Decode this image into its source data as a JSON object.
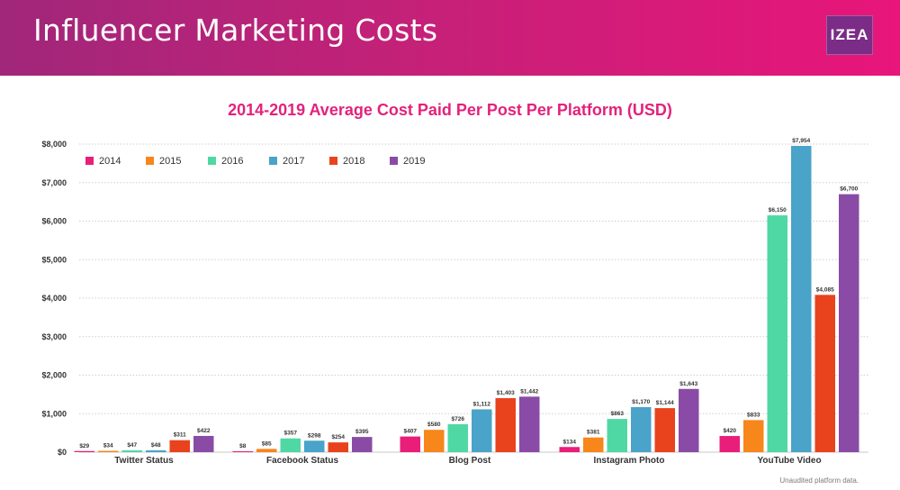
{
  "header": {
    "title": "Influencer Marketing Costs",
    "logo_text": "IZEA"
  },
  "footnote": "Unaudited platform data.",
  "colors": {
    "header_start": "#a0277a",
    "header_end": "#e8157a",
    "title": "#e3227c",
    "series": [
      "#e91e7a",
      "#f7861b",
      "#4fd8a4",
      "#4aa3c8",
      "#e8431c",
      "#8a4ba6"
    ]
  },
  "chart_data": {
    "type": "bar",
    "title": "2014-2019 Average Cost Paid Per Post Per Platform (USD)",
    "xlabel": "",
    "ylabel": "",
    "ylim": [
      0,
      8000
    ],
    "yticks": [
      0,
      1000,
      2000,
      3000,
      4000,
      5000,
      6000,
      7000,
      8000
    ],
    "ytick_labels": [
      "$0",
      "$1,000",
      "$2,000",
      "$3,000",
      "$4,000",
      "$5,000",
      "$6,000",
      "$7,000",
      "$8,000"
    ],
    "grid": true,
    "legend_position": "top-left",
    "categories": [
      "Twitter Status",
      "Facebook Status",
      "Blog Post",
      "Instagram Photo",
      "YouTube Video"
    ],
    "series": [
      {
        "name": "2014",
        "values": [
          29,
          8,
          407,
          134,
          420
        ],
        "labels": [
          "$29",
          "$8",
          "$407",
          "$134",
          "$420"
        ]
      },
      {
        "name": "2015",
        "values": [
          34,
          85,
          580,
          381,
          833
        ],
        "labels": [
          "$34",
          "$85",
          "$580",
          "$381",
          "$833"
        ]
      },
      {
        "name": "2016",
        "values": [
          47,
          357,
          726,
          863,
          6150
        ],
        "labels": [
          "$47",
          "$357",
          "$726",
          "$863",
          "$6,150"
        ]
      },
      {
        "name": "2017",
        "values": [
          48,
          298,
          1112,
          1170,
          7954
        ],
        "labels": [
          "$48",
          "$298",
          "$1,112",
          "$1,170",
          "$7,954"
        ]
      },
      {
        "name": "2018",
        "values": [
          311,
          254,
          1403,
          1144,
          4085
        ],
        "labels": [
          "$311",
          "$254",
          "$1,403",
          "$1,144",
          "$4,085"
        ]
      },
      {
        "name": "2019",
        "values": [
          422,
          395,
          1442,
          1643,
          6700
        ],
        "labels": [
          "$422",
          "$395",
          "$1,442",
          "$1,643",
          "$6,700"
        ]
      }
    ]
  }
}
